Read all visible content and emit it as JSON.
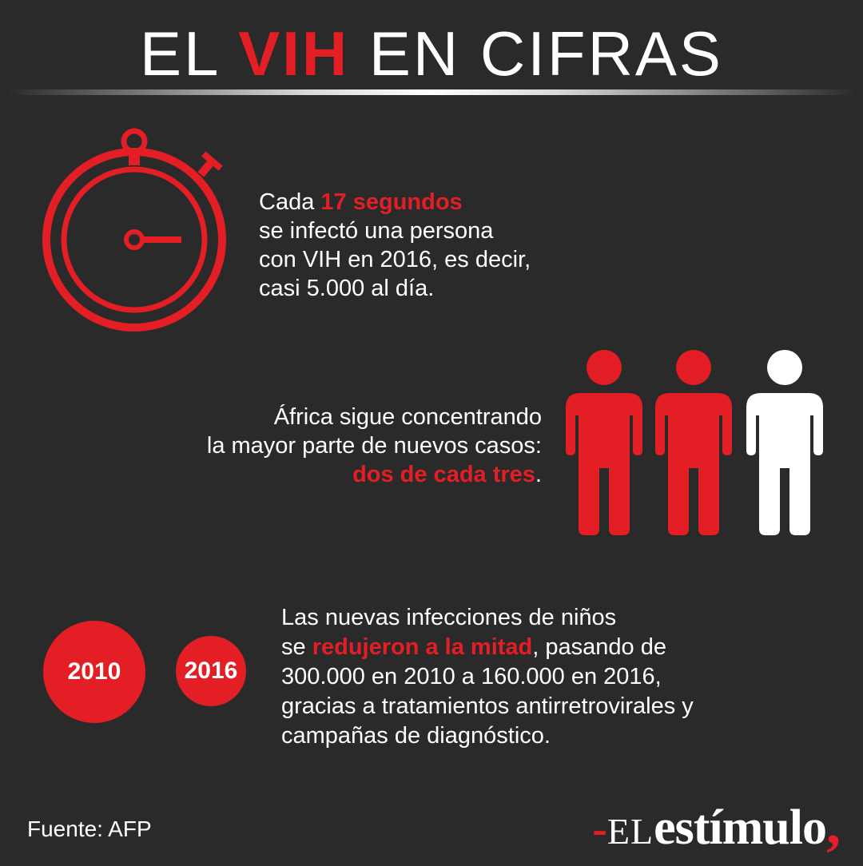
{
  "title": {
    "part1": "EL ",
    "highlight": "VIH",
    "part2": " EN CIFRAS"
  },
  "stat1": {
    "lead": "Cada ",
    "highlight": "17 segundos",
    "line2": "se infectó una persona",
    "line3": "con VIH en 2016, es decir,",
    "line4": "casi 5.000 al día.",
    "icon": "stopwatch-icon"
  },
  "stat2": {
    "line1": "África sigue concentrando",
    "line2": "la mayor parte de nuevos casos:",
    "highlight": "dos de cada tres",
    "tail": ".",
    "icon": "people-icon",
    "filled_ratio": "2/3"
  },
  "stat3": {
    "line1": "Las nuevas infecciones de niños",
    "lead2": "se ",
    "highlight": "redujeron a la mitad",
    "tail2": ", pasando de",
    "line3": "300.000 en 2010 a 160.000 en 2016,",
    "line4": "gracias a tratamientos antirretrovirales y",
    "line5": "campañas de diagnóstico.",
    "year_a": "2010",
    "year_b": "2016"
  },
  "footer": {
    "source": "Fuente: AFP",
    "logo_dash": "-",
    "logo_el": "EL",
    "logo_word": "estímulo",
    "logo_comma": ","
  },
  "colors": {
    "background": "#2b2a2a",
    "accent": "#e31e24",
    "text": "#ffffff"
  }
}
